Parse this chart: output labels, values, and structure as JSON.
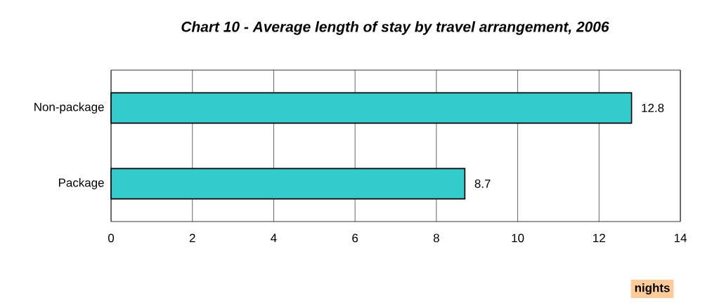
{
  "chart_data": {
    "type": "bar",
    "orientation": "horizontal",
    "title": "Chart 10 - Average length of stay by travel arrangement, 2006",
    "xlabel": "nights",
    "categories": [
      "Non-package",
      "Package"
    ],
    "values": [
      12.8,
      8.7
    ],
    "color": "#33cccc",
    "xlim": [
      0,
      14
    ],
    "xticks": [
      0,
      2,
      4,
      6,
      8,
      10,
      12,
      14
    ],
    "grid": "x",
    "data_labels": true
  }
}
